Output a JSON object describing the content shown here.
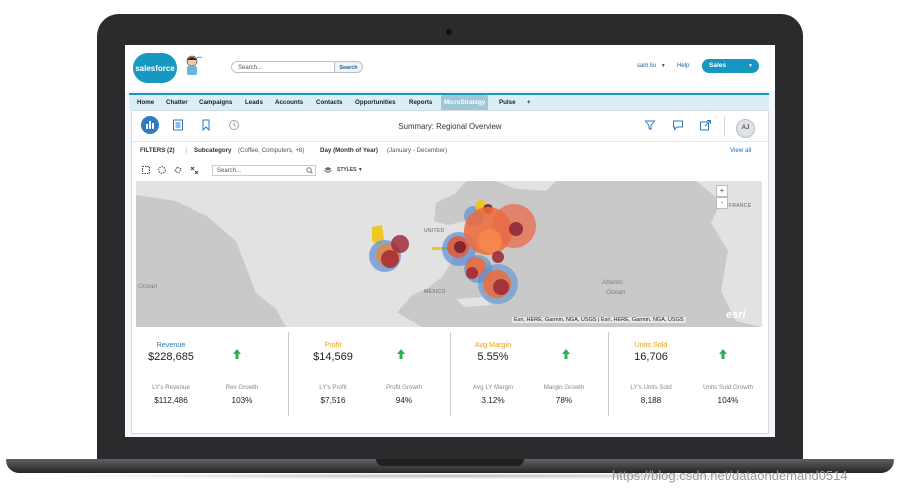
{
  "header": {
    "logo_text": "salesforce",
    "search_placeholder": "Search...",
    "search_button": "Search",
    "user_name": "sam liu",
    "help_label": "Help",
    "app_name": "Sales"
  },
  "nav": {
    "tabs": [
      {
        "label": "Home"
      },
      {
        "label": "Chatter"
      },
      {
        "label": "Campaigns"
      },
      {
        "label": "Leads"
      },
      {
        "label": "Accounts"
      },
      {
        "label": "Contacts"
      },
      {
        "label": "Opportunities"
      },
      {
        "label": "Reports"
      },
      {
        "label": "MicroStrategy",
        "active": true
      },
      {
        "label": "Pulse"
      },
      {
        "label": "+"
      }
    ]
  },
  "toolbar": {
    "title": "Summary: Regional Overview",
    "avatar_initials": "AJ",
    "icons": [
      "dashboard-icon",
      "list-icon",
      "bookmark-icon",
      "history-icon",
      "filter-icon",
      "comment-icon",
      "share-icon"
    ]
  },
  "filters": {
    "label": "FILTERS (2)",
    "separator": "|",
    "subcategory_name": "Subcategory",
    "subcategory_value": "(Coffee, Computers, +8)",
    "day_name": "Day (Month of Year)",
    "day_value": "(January - December)",
    "view_all": "View all"
  },
  "map": {
    "search_placeholder": "Search...",
    "styles_label": "STYLES",
    "attribution": "Esri, HERE, Garmin, NGA, USGS | Esri, HERE, Garmin, NGA, USGS",
    "esri_logo": "esri",
    "zoom_in": "+",
    "zoom_out": "-",
    "labels": {
      "united_states": "UNITED",
      "mexico": "MÉXICO",
      "france": "FRANCE",
      "atlantic_1": "Atlantic",
      "atlantic_2": "Ocean",
      "ocean_left": "Ocean"
    }
  },
  "kpis": [
    {
      "title": "Revenue",
      "value": "$228,685",
      "title_color": "#2e7bbf",
      "ly_label": "LY's Revenue",
      "ly_value": "$112,486",
      "growth_label": "Rev Growth",
      "growth_value": "103%"
    },
    {
      "title": "Profit",
      "value": "$14,569",
      "title_color": "#e8a317",
      "ly_label": "LY's Profit",
      "ly_value": "$7,516",
      "growth_label": "Profit Growth",
      "growth_value": "94%"
    },
    {
      "title": "Avg Margin",
      "value": "5.55%",
      "title_color": "#e8a317",
      "ly_label": "Avg LY Margin",
      "ly_value": "3.12%",
      "growth_label": "Margin Growth",
      "growth_value": "78%"
    },
    {
      "title": "Units Sold",
      "value": "16,706",
      "title_color": "#e8a317",
      "ly_label": "LY's Units Sold",
      "ly_value": "8,188",
      "growth_label": "Units Sold Growth",
      "growth_value": "104%"
    }
  ],
  "colors": {
    "arrow_up": "#2bb24c",
    "salesforce_blue": "#1797c0"
  },
  "watermark": "https://blog.csdn.net/dataondemand0514"
}
